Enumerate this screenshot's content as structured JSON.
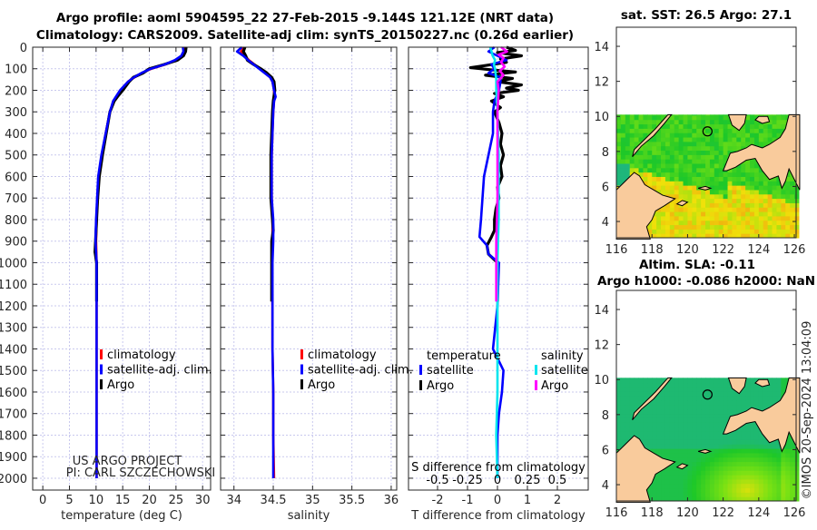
{
  "figure": {
    "title_line1": "Argo profile: aoml 5904595_22 27-Feb-2015 -9.144S 121.12E (NRT data)",
    "title_line2": "Climatology: CARS2009. Satellite-adj clim: synTS_20150227.nc (0.26d earlier)",
    "credit_line1": "US ARGO PROJECT",
    "credit_line2": "PI: CARL SZCZECHOWSKI",
    "timestamp": "©IMOS 20-Sep-2024 13:04:09"
  },
  "chart_data": [
    {
      "type": "line",
      "id": "temperature",
      "xlabel": "temperature (deg C)",
      "xlim": [
        -1.9,
        31.5
      ],
      "xticks": [
        0,
        5,
        10,
        15,
        20,
        25,
        30
      ],
      "ylim": [
        0,
        2055
      ],
      "yticks": [
        0,
        100,
        200,
        300,
        400,
        500,
        600,
        700,
        800,
        900,
        1000,
        1100,
        1200,
        1300,
        1400,
        1500,
        1600,
        1700,
        1800,
        1900,
        2000
      ],
      "grid": true,
      "legend": [
        "climatology",
        "satellite-adj. clim.",
        "Argo"
      ],
      "legend_placement": "lower-middle",
      "series": [
        {
          "name": "climatology",
          "color": "#ff0000",
          "depth": [
            0,
            20,
            40,
            60,
            80,
            100,
            120,
            140,
            160,
            200,
            250,
            300,
            400,
            500,
            600,
            700,
            800,
            900,
            1000,
            1200,
            1400,
            1600,
            1800,
            2000
          ],
          "values": [
            26.5,
            26.6,
            26.2,
            25.0,
            23.0,
            20.4,
            18.6,
            17.2,
            16.0,
            14.6,
            13.3,
            12.6,
            11.8,
            11.1,
            10.5,
            10.3,
            10.1,
            10.0,
            10.1,
            10.1,
            10.1,
            10.1,
            10.1,
            10.1
          ]
        },
        {
          "name": "Argo",
          "color": "#000000",
          "depth": [
            0,
            20,
            40,
            60,
            80,
            100,
            120,
            140,
            160,
            200,
            230,
            250,
            300,
            400,
            500,
            600,
            700,
            800,
            900,
            950,
            1000,
            1100,
            1180
          ],
          "values": [
            26.9,
            26.8,
            26.4,
            25.3,
            22.8,
            20.0,
            18.8,
            17.0,
            16.2,
            15.0,
            14.0,
            13.4,
            12.6,
            11.9,
            11.2,
            10.6,
            10.3,
            10.1,
            9.9,
            9.8,
            10.1,
            10.1,
            10.1
          ]
        },
        {
          "name": "satellite-adj. clim.",
          "color": "#0000ff",
          "depth": [
            0,
            20,
            40,
            60,
            80,
            100,
            120,
            140,
            160,
            200,
            250,
            300,
            400,
            500,
            600,
            700,
            800,
            900,
            1000,
            1200,
            1400,
            1600,
            1800,
            2000
          ],
          "values": [
            26.3,
            26.4,
            26.0,
            24.8,
            22.9,
            20.3,
            18.5,
            17.1,
            16.0,
            14.5,
            13.2,
            12.6,
            11.8,
            11.0,
            10.4,
            10.2,
            10.0,
            9.9,
            10.1,
            10.1,
            10.1,
            10.1,
            10.1,
            10.1
          ]
        }
      ]
    },
    {
      "type": "line",
      "id": "salinity",
      "xlabel": "salinity",
      "xlim": [
        33.83,
        36.07
      ],
      "xticks": [
        34,
        34.5,
        35,
        35.5,
        36
      ],
      "ylim": [
        0,
        2055
      ],
      "grid": true,
      "legend": [
        "climatology",
        "satellite-adj. clim.",
        "Argo"
      ],
      "legend_placement": "lower-middle",
      "series": [
        {
          "name": "climatology",
          "color": "#ff0000",
          "depth": [
            0,
            20,
            40,
            60,
            80,
            100,
            120,
            140,
            160,
            200,
            250,
            300,
            400,
            500,
            600,
            700,
            800,
            900,
            1000,
            1200,
            1400,
            1600,
            1800,
            2000
          ],
          "values": [
            34.13,
            34.09,
            34.14,
            34.19,
            34.26,
            34.33,
            34.4,
            34.46,
            34.49,
            34.51,
            34.51,
            34.5,
            34.49,
            34.48,
            34.48,
            34.48,
            34.49,
            34.49,
            34.48,
            34.49,
            34.49,
            34.5,
            34.5,
            34.51
          ]
        },
        {
          "name": "Argo",
          "color": "#000000",
          "depth": [
            0,
            20,
            40,
            60,
            80,
            100,
            120,
            140,
            160,
            200,
            250,
            300,
            400,
            500,
            600,
            700,
            800,
            850,
            900,
            1000,
            1100,
            1180
          ],
          "values": [
            34.14,
            34.12,
            34.15,
            34.17,
            34.25,
            34.34,
            34.42,
            34.48,
            34.51,
            34.52,
            34.5,
            34.49,
            34.48,
            34.47,
            34.47,
            34.47,
            34.49,
            34.5,
            34.48,
            34.48,
            34.48,
            34.48
          ]
        },
        {
          "name": "satellite-adj. clim.",
          "color": "#0000ff",
          "depth": [
            0,
            20,
            40,
            60,
            80,
            100,
            120,
            140,
            160,
            200,
            230,
            250,
            300,
            400,
            500,
            600,
            700,
            800,
            900,
            1000,
            1200,
            1400,
            1600,
            1800,
            2000
          ],
          "values": [
            34.1,
            34.04,
            34.12,
            34.18,
            34.25,
            34.32,
            34.39,
            34.46,
            34.49,
            34.51,
            34.53,
            34.51,
            34.5,
            34.49,
            34.48,
            34.48,
            34.48,
            34.5,
            34.5,
            34.49,
            34.49,
            34.49,
            34.5,
            34.5,
            34.5
          ]
        }
      ]
    },
    {
      "type": "line",
      "id": "difference",
      "xlabel": "T difference from climatology",
      "xlim": [
        -2.97,
        3.03
      ],
      "xticks": [
        -2,
        -1,
        0,
        1,
        2
      ],
      "s_label": "S difference from climatology",
      "s_ticks": [
        "-0.5",
        "-0.25",
        "0",
        "0.25",
        "0.5"
      ],
      "s_tick_values": [
        -0.5,
        -0.25,
        0,
        0.25,
        0.5
      ],
      "s_scale_to_t": 4,
      "ylim": [
        0,
        2055
      ],
      "grid": true,
      "legend_temperature_header": "temperature",
      "legend_salinity_header": "salinity",
      "legend_temperature": [
        "satellite",
        "Argo"
      ],
      "legend_salinity": [
        "satellite",
        "Argo"
      ],
      "series": [
        {
          "name": "temperature Argo",
          "var": "T",
          "color": "#000000",
          "depth": [
            0,
            15,
            25,
            40,
            55,
            70,
            85,
            95,
            105,
            115,
            130,
            145,
            160,
            175,
            190,
            200,
            215,
            230,
            250,
            280,
            300,
            350,
            400,
            450,
            500,
            550,
            600,
            650,
            700,
            750,
            800,
            850,
            880,
            920,
            960,
            1000,
            1100,
            1180
          ],
          "values": [
            0.3,
            0.6,
            0.0,
            0.8,
            0.1,
            0.3,
            -0.4,
            -0.9,
            -0.2,
            0.6,
            -0.4,
            0.5,
            0.0,
            0.8,
            0.3,
            0.7,
            -0.1,
            0.2,
            -0.2,
            0.1,
            -0.1,
            0.05,
            0.15,
            0.1,
            0.2,
            0.1,
            0.15,
            0.0,
            0.05,
            -0.05,
            -0.1,
            -0.1,
            -0.2,
            -0.35,
            -0.3,
            0.0,
            0.0,
            0.0
          ]
        },
        {
          "name": "temperature satellite",
          "var": "T",
          "color": "#0000ff",
          "depth": [
            0,
            20,
            40,
            60,
            80,
            100,
            120,
            140,
            160,
            200,
            250,
            300,
            400,
            500,
            600,
            700,
            800,
            880,
            920,
            960,
            1000,
            1200,
            1400,
            1500,
            1600,
            1700,
            1800,
            2000
          ],
          "values": [
            -0.1,
            -0.3,
            0.0,
            0.3,
            -0.2,
            -0.1,
            -0.3,
            0.1,
            0.1,
            0.05,
            -0.1,
            -0.15,
            -0.15,
            -0.3,
            -0.45,
            -0.5,
            -0.55,
            -0.6,
            -0.35,
            -0.3,
            0.05,
            0.0,
            -0.15,
            0.2,
            0.15,
            0.05,
            0.0,
            0.0
          ]
        },
        {
          "name": "salinity satellite",
          "var": "S",
          "color": "#00e5ee",
          "depth": [
            0,
            20,
            40,
            60,
            80,
            100,
            150,
            200,
            300,
            500,
            800,
            1000,
            1200,
            1400,
            1500,
            1600,
            1800,
            2000
          ],
          "values": [
            -0.06,
            -0.05,
            -0.04,
            -0.02,
            -0.03,
            -0.02,
            -0.01,
            -0.01,
            0.0,
            0.01,
            0.01,
            0.0,
            0.0,
            0.0,
            0.0,
            0.0,
            -0.01,
            0.0
          ]
        },
        {
          "name": "salinity Argo",
          "var": "S",
          "color": "#ff00ff",
          "depth": [
            0,
            20,
            35,
            50,
            70,
            90,
            110,
            130,
            160,
            200,
            300,
            500,
            700,
            900,
            1000,
            1180
          ],
          "values": [
            0.03,
            0.08,
            0.01,
            0.05,
            0.03,
            0.06,
            0.02,
            0.05,
            0.0,
            0.01,
            0.0,
            0.0,
            0.0,
            -0.01,
            -0.01,
            -0.01
          ]
        }
      ]
    },
    {
      "type": "heatmap",
      "id": "sst-map",
      "title": "sat. SST: 26.5 Argo: 27.1",
      "xlim": [
        116,
        126.1
      ],
      "ylim": [
        3.07,
        15.09
      ],
      "xticks": [
        116,
        118,
        120,
        122,
        124,
        126
      ],
      "yticks": [
        4,
        6,
        8,
        10,
        12,
        14
      ],
      "data_lat_max": 10.1,
      "float_position": [
        121.12,
        9.144
      ],
      "colors": {
        "land": "#f9cb9c",
        "low": "#1fb87a",
        "mid": "#22cc22",
        "high": "#f0e010",
        "max": "#f08010"
      }
    },
    {
      "type": "heatmap",
      "id": "sla-map",
      "title_line1": "Altim. SLA: -0.11",
      "title_line2": "Argo h1000: -0.086 h2000: NaN",
      "xlim": [
        116,
        126.1
      ],
      "ylim": [
        3.07,
        15.09
      ],
      "xticks": [
        116,
        118,
        120,
        122,
        124,
        126
      ],
      "yticks": [
        4,
        6,
        8,
        10,
        12,
        14
      ],
      "data_lat_max": 10.1,
      "float_position": [
        121.12,
        9.144
      ],
      "colors": {
        "land": "#f9cb9c",
        "low": "#20b884",
        "mid": "#22cc22",
        "high": "#e8f020"
      }
    }
  ]
}
